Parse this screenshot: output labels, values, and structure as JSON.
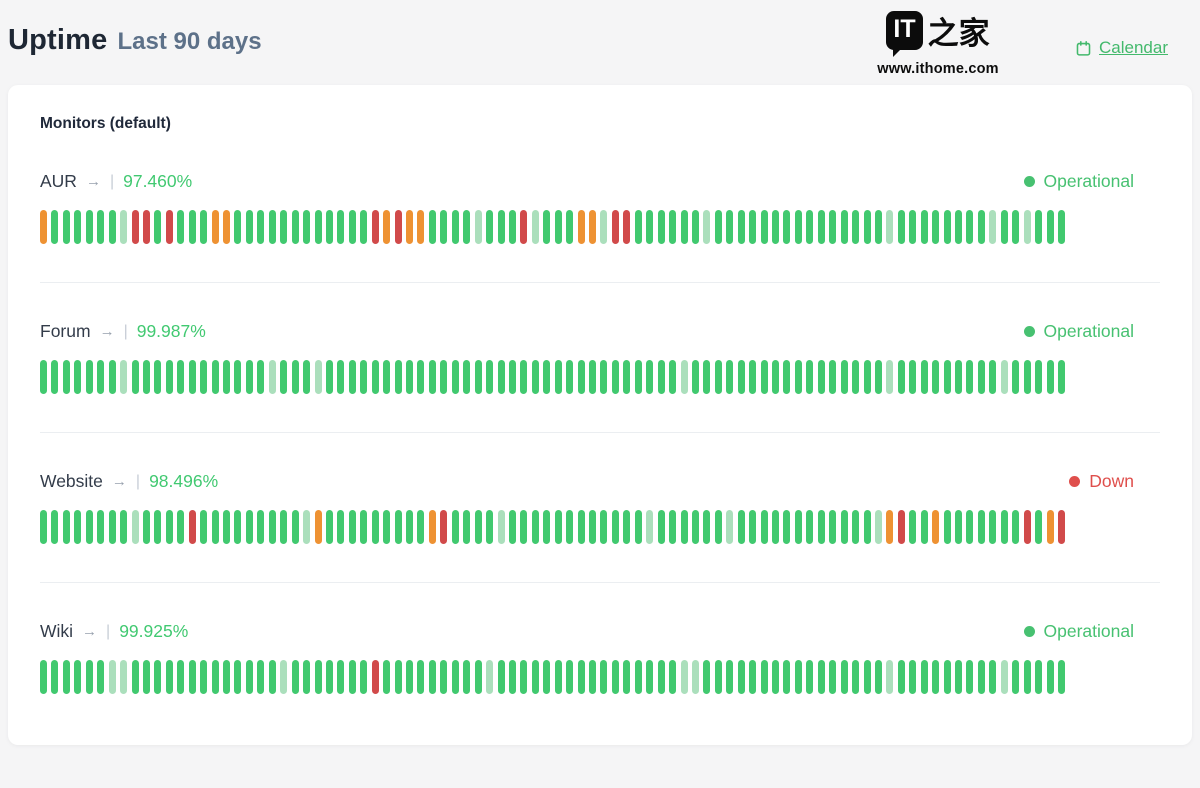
{
  "page": {
    "title": "Uptime",
    "subtitle": "Last 90 days"
  },
  "header": {
    "calendar_label": "Calendar"
  },
  "watermark": {
    "logo_it": "IT",
    "logo_cn": "之家",
    "site": "www.ithome.com"
  },
  "card": {
    "group_title": "Monitors (default)"
  },
  "ui": {
    "arrow": "→",
    "separator": "|"
  },
  "colors": {
    "up": "#41c96f",
    "partial": "#abdfbc",
    "degraded": "#ee9233",
    "down": "#d14a4a",
    "operational": "#47c171",
    "offline": "#df4f4c",
    "percent": "#41c971",
    "link": "#43b96c"
  },
  "monitors": [
    {
      "name": "AUR",
      "uptime": "97.460%",
      "status": "Operational",
      "status_type": "operational",
      "bars_rle": [
        [
          "o",
          1
        ],
        [
          "g",
          6
        ],
        [
          "l",
          1
        ],
        [
          "r",
          2
        ],
        [
          "g",
          1
        ],
        [
          "r",
          1
        ],
        [
          "g",
          3
        ],
        [
          "o",
          2
        ],
        [
          "g",
          12
        ],
        [
          "r",
          1
        ],
        [
          "o",
          1
        ],
        [
          "r",
          1
        ],
        [
          "o",
          2
        ],
        [
          "g",
          4
        ],
        [
          "l",
          1
        ],
        [
          "g",
          3
        ],
        [
          "r",
          1
        ],
        [
          "l",
          1
        ],
        [
          "g",
          3
        ],
        [
          "o",
          2
        ],
        [
          "l",
          1
        ],
        [
          "r",
          2
        ],
        [
          "g",
          6
        ],
        [
          "l",
          1
        ],
        [
          "g",
          15
        ],
        [
          "l",
          1
        ],
        [
          "g",
          8
        ],
        [
          "l",
          1
        ],
        [
          "g",
          2
        ],
        [
          "l",
          1
        ],
        [
          "g",
          3
        ]
      ]
    },
    {
      "name": "Forum",
      "uptime": "99.987%",
      "status": "Operational",
      "status_type": "operational",
      "bars_rle": [
        [
          "g",
          7
        ],
        [
          "l",
          1
        ],
        [
          "g",
          12
        ],
        [
          "l",
          1
        ],
        [
          "g",
          3
        ],
        [
          "l",
          1
        ],
        [
          "g",
          31
        ],
        [
          "l",
          1
        ],
        [
          "g",
          17
        ],
        [
          "l",
          1
        ],
        [
          "g",
          9
        ],
        [
          "l",
          1
        ],
        [
          "g",
          5
        ]
      ]
    },
    {
      "name": "Website",
      "uptime": "98.496%",
      "status": "Down",
      "status_type": "down",
      "bars_rle": [
        [
          "g",
          8
        ],
        [
          "l",
          1
        ],
        [
          "g",
          4
        ],
        [
          "r",
          1
        ],
        [
          "g",
          9
        ],
        [
          "l",
          1
        ],
        [
          "o",
          1
        ],
        [
          "g",
          9
        ],
        [
          "o",
          1
        ],
        [
          "r",
          1
        ],
        [
          "g",
          4
        ],
        [
          "l",
          1
        ],
        [
          "g",
          12
        ],
        [
          "l",
          1
        ],
        [
          "g",
          6
        ],
        [
          "l",
          1
        ],
        [
          "g",
          12
        ],
        [
          "l",
          1
        ],
        [
          "o",
          1
        ],
        [
          "r",
          1
        ],
        [
          "g",
          2
        ],
        [
          "o",
          1
        ],
        [
          "g",
          7
        ],
        [
          "r",
          1
        ],
        [
          "g",
          1
        ],
        [
          "o",
          1
        ],
        [
          "r",
          1
        ]
      ]
    },
    {
      "name": "Wiki",
      "uptime": "99.925%",
      "status": "Operational",
      "status_type": "operational",
      "bars_rle": [
        [
          "g",
          6
        ],
        [
          "l",
          2
        ],
        [
          "g",
          13
        ],
        [
          "l",
          1
        ],
        [
          "g",
          7
        ],
        [
          "r",
          1
        ],
        [
          "g",
          9
        ],
        [
          "l",
          1
        ],
        [
          "g",
          16
        ],
        [
          "l",
          2
        ],
        [
          "g",
          16
        ],
        [
          "l",
          1
        ],
        [
          "g",
          9
        ],
        [
          "l",
          1
        ],
        [
          "g",
          5
        ]
      ]
    }
  ]
}
